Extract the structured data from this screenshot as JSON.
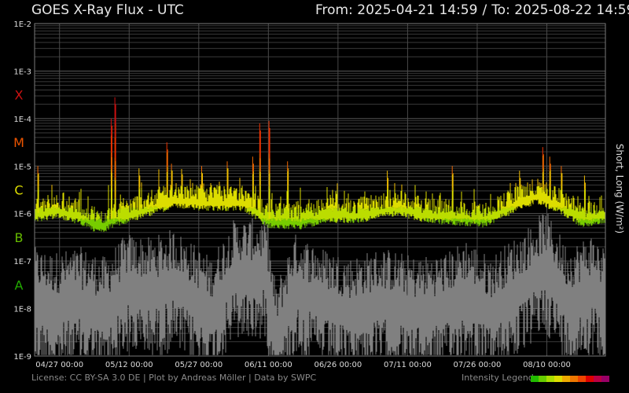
{
  "header": {
    "title": "GOES X-Ray Flux - UTC",
    "from_label": "From: 2025-04-21 14:59",
    "separator": "/",
    "to_label": "To: 2025-08-22 14:59"
  },
  "footer": {
    "credits": "License: CC BY-SA 3.0 DE | Plot by Andreas Möller | Data by SWPC",
    "legend_label": "Intensity Legend",
    "legend_colors": [
      "#22bb00",
      "#66cc00",
      "#aadd00",
      "#dddd00",
      "#eeaa00",
      "#ee7700",
      "#ee4400",
      "#dd0000",
      "#bb0044",
      "#990066"
    ]
  },
  "chart_data": {
    "type": "line",
    "title": "GOES X-Ray Flux - UTC",
    "ylabel": "Short, Long (W/m²)",
    "yscale": "log",
    "ylim": [
      1e-09,
      0.01
    ],
    "y_tick_labels": [
      "1E-2",
      "1E-3",
      "1E-4",
      "1E-5",
      "1E-6",
      "1E-7",
      "1E-8",
      "1E-9"
    ],
    "class_labels": [
      {
        "label": "X",
        "color": "#cc1111"
      },
      {
        "label": "M",
        "color": "#ee5500"
      },
      {
        "label": "C",
        "color": "#dddd00"
      },
      {
        "label": "B",
        "color": "#66bb00"
      },
      {
        "label": "A",
        "color": "#22aa00"
      }
    ],
    "x_tick_labels": [
      "04/27 00:00",
      "05/12 00:00",
      "05/27 00:00",
      "06/11 00:00",
      "06/26 00:00",
      "07/11 00:00",
      "07/26 00:00",
      "08/10 00:00"
    ],
    "xlim_days": [
      0,
      123
    ],
    "grid": true,
    "series": [
      {
        "name": "Long",
        "color": "intensity-coded (green→yellow→orange→red)",
        "baseline_log": [
          [
            0,
            -6.0
          ],
          [
            5,
            -5.9
          ],
          [
            10,
            -6.05
          ],
          [
            14,
            -6.25
          ],
          [
            17,
            -6.1
          ],
          [
            22,
            -5.95
          ],
          [
            30,
            -5.7
          ],
          [
            38,
            -5.75
          ],
          [
            45,
            -5.75
          ],
          [
            50,
            -6.1
          ],
          [
            57,
            -6.15
          ],
          [
            63,
            -6.0
          ],
          [
            70,
            -6.0
          ],
          [
            78,
            -5.85
          ],
          [
            84,
            -6.0
          ],
          [
            90,
            -6.05
          ],
          [
            97,
            -6.1
          ],
          [
            103,
            -5.8
          ],
          [
            108,
            -5.6
          ],
          [
            113,
            -5.8
          ],
          [
            118,
            -6.1
          ],
          [
            123,
            -6.0
          ]
        ],
        "peaks": [
          {
            "day": 0.7,
            "log": -5.0
          },
          {
            "day": 16.5,
            "log": -4.0
          },
          {
            "day": 17.3,
            "log": -3.55
          },
          {
            "day": 18.5,
            "log": -5.6
          },
          {
            "day": 22.5,
            "log": -5.05
          },
          {
            "day": 28.5,
            "log": -4.5
          },
          {
            "day": 29.5,
            "log": -4.95
          },
          {
            "day": 36.0,
            "log": -5.0
          },
          {
            "day": 40.3,
            "log": -5.6
          },
          {
            "day": 41.5,
            "log": -4.9
          },
          {
            "day": 47.0,
            "log": -4.8
          },
          {
            "day": 48.5,
            "log": -4.1
          },
          {
            "day": 50.5,
            "log": -4.05
          },
          {
            "day": 54.5,
            "log": -4.9
          },
          {
            "day": 76.0,
            "log": -5.1
          },
          {
            "day": 82.0,
            "log": -5.5
          },
          {
            "day": 90.0,
            "log": -5.0
          },
          {
            "day": 102.0,
            "log": -5.9
          },
          {
            "day": 104.5,
            "log": -5.1
          },
          {
            "day": 109.5,
            "log": -4.6
          },
          {
            "day": 111.0,
            "log": -4.8
          },
          {
            "day": 113.5,
            "log": -5.0
          },
          {
            "day": 118.5,
            "log": -5.2
          }
        ]
      },
      {
        "name": "Short",
        "color": "#808080",
        "baseline_log": [
          [
            0,
            -7.8
          ],
          [
            4,
            -7.9
          ],
          [
            10,
            -7.8
          ],
          [
            15,
            -8.0
          ],
          [
            20,
            -7.5
          ],
          [
            25,
            -7.6
          ],
          [
            30,
            -7.4
          ],
          [
            38,
            -8.0
          ],
          [
            43,
            -7.2
          ],
          [
            50,
            -7.2
          ],
          [
            52,
            -8.6
          ],
          [
            56,
            -7.5
          ],
          [
            62,
            -7.8
          ],
          [
            68,
            -8.0
          ],
          [
            75,
            -7.8
          ],
          [
            82,
            -8.0
          ],
          [
            89,
            -7.9
          ],
          [
            93,
            -7.6
          ],
          [
            98,
            -8.0
          ],
          [
            106,
            -7.4
          ],
          [
            110,
            -7.0
          ],
          [
            115,
            -7.8
          ],
          [
            120,
            -7.5
          ],
          [
            123,
            -7.8
          ]
        ]
      }
    ]
  }
}
